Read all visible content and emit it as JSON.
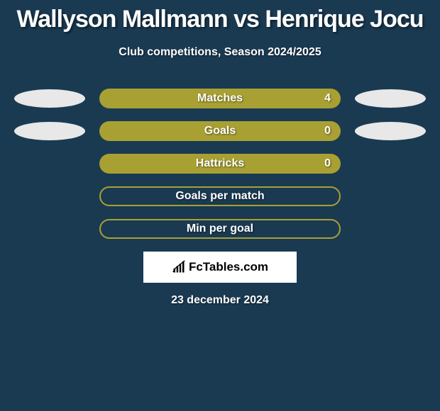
{
  "background_color": "#1a3a52",
  "title": {
    "text": "Wallyson Mallmann vs Henrique Jocu",
    "fontsize": 34,
    "color": "#ffffff"
  },
  "subtitle": {
    "text": "Club competitions, Season 2024/2025",
    "fontsize": 16,
    "color": "#ffffff"
  },
  "stats": {
    "bar_color_filled": "#a8a032",
    "bar_color_outline": "#a8a032",
    "ellipse_color": "#e8e8e8",
    "label_fontsize": 16,
    "value_fontsize": 16,
    "rows": [
      {
        "label": "Matches",
        "value": "4",
        "filled": true,
        "left_ellipse": true,
        "right_ellipse": true,
        "show_value": true
      },
      {
        "label": "Goals",
        "value": "0",
        "filled": true,
        "left_ellipse": true,
        "right_ellipse": true,
        "show_value": true
      },
      {
        "label": "Hattricks",
        "value": "0",
        "filled": true,
        "left_ellipse": false,
        "right_ellipse": false,
        "show_value": true
      },
      {
        "label": "Goals per match",
        "value": "",
        "filled": false,
        "left_ellipse": false,
        "right_ellipse": false,
        "show_value": false
      },
      {
        "label": "Min per goal",
        "value": "",
        "filled": false,
        "left_ellipse": false,
        "right_ellipse": false,
        "show_value": false
      }
    ]
  },
  "logo": {
    "text": "FcTables.com",
    "fontsize": 17,
    "box_bg": "#ffffff"
  },
  "date": {
    "text": "23 december 2024",
    "fontsize": 16
  }
}
